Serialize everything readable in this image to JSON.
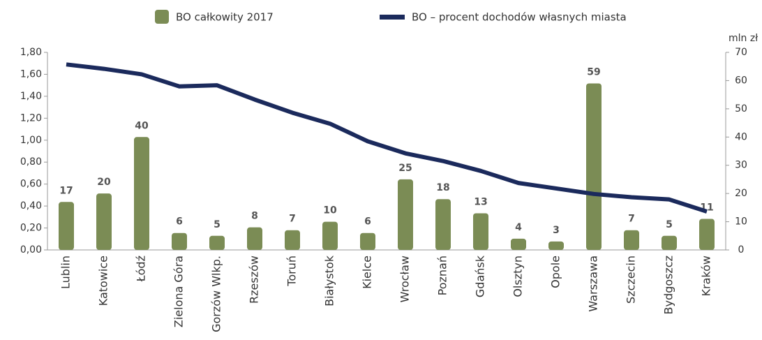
{
  "chart_data": {
    "type": "bar_line",
    "categories": [
      "Lublin",
      "Katowice",
      "Łódź",
      "Zielona Góra",
      "Gorzów Wlkp.",
      "Rzeszów",
      "Toruń",
      "Białystok",
      "Kielce",
      "Wrocław",
      "Poznań",
      "Gdańsk",
      "Olsztyn",
      "Opole",
      "Warszawa",
      "Szczecin",
      "Bydgoszcz",
      "Kraków"
    ],
    "series": [
      {
        "name": "BO całkowity 2017",
        "color": "#7b8c55",
        "type": "bar",
        "axis": "y2",
        "values": [
          17,
          20,
          40,
          6,
          5,
          8,
          7,
          10,
          6,
          25,
          18,
          13,
          4,
          3,
          59,
          7,
          5,
          11
        ]
      },
      {
        "name": "BO – procent dochodów własnych miasta",
        "color": "#1b2a5c",
        "type": "line",
        "axis": "y",
        "values": [
          1.69,
          1.65,
          1.6,
          1.49,
          1.5,
          1.37,
          1.25,
          1.15,
          0.99,
          0.88,
          0.81,
          0.72,
          0.61,
          0.56,
          0.51,
          0.48,
          0.46,
          0.35
        ]
      }
    ],
    "ylim": [
      0,
      1.8
    ],
    "yticks": [
      {
        "value": 0,
        "label": "0,00"
      },
      {
        "value": 0.2,
        "label": "0,20"
      },
      {
        "value": 0.4,
        "label": "0,40"
      },
      {
        "value": 0.6,
        "label": "0,60"
      },
      {
        "value": 0.8,
        "label": "0,80"
      },
      {
        "value": 1.0,
        "label": "1,00"
      },
      {
        "value": 1.2,
        "label": "1,20"
      },
      {
        "value": 1.4,
        "label": "1,40"
      },
      {
        "value": 1.6,
        "label": "1,60"
      },
      {
        "value": 1.8,
        "label": "1,80"
      }
    ],
    "y2lim": [
      0,
      70
    ],
    "y2ticks": [
      0,
      10,
      20,
      30,
      40,
      50,
      60,
      70
    ],
    "y2label": "mln zł",
    "grid": false
  }
}
